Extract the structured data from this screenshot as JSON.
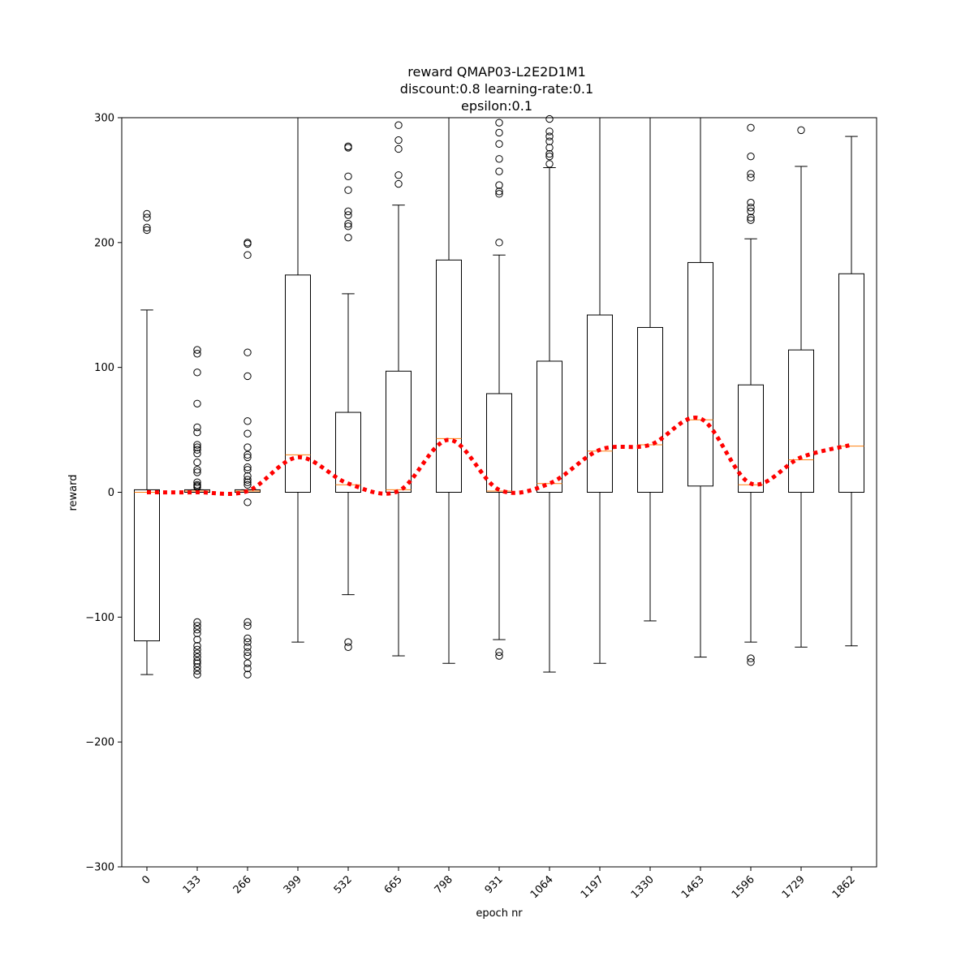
{
  "chart_data": {
    "type": "box",
    "title_lines": [
      "reward QMAP03-L2E2D1M1",
      "discount:0.8 learning-rate:0.1",
      "epsilon:0.1"
    ],
    "xlabel": "epoch nr",
    "ylabel": "reward",
    "ylim": [
      -300,
      300
    ],
    "y_ticks": [
      -300,
      -200,
      -100,
      0,
      100,
      200,
      300
    ],
    "y_tick_labels": [
      "−300",
      "−200",
      "−100",
      "0",
      "100",
      "200",
      "300"
    ],
    "categories": [
      "0",
      "133",
      "266",
      "399",
      "532",
      "665",
      "798",
      "931",
      "1064",
      "1197",
      "1330",
      "1463",
      "1596",
      "1729",
      "1862"
    ],
    "boxes": [
      {
        "q1": -119,
        "median": 0,
        "q3": 2,
        "whisker_low": -146,
        "whisker_high": 146,
        "outliers": [
          210,
          212,
          220,
          223
        ]
      },
      {
        "q1": 0,
        "median": 1,
        "q3": 2,
        "whisker_low": 0,
        "whisker_high": 2,
        "outliers": [
          114,
          111,
          96,
          71,
          52,
          48,
          38,
          36,
          34,
          31,
          24,
          18,
          16,
          8,
          6,
          5,
          4,
          -104,
          -107,
          -110,
          -113,
          -118,
          -123,
          -126,
          -129,
          -132,
          -135,
          -137,
          -140,
          -143,
          -146
        ]
      },
      {
        "q1": 0,
        "median": 1,
        "q3": 2,
        "whisker_low": 0,
        "whisker_high": 2,
        "outliers": [
          200,
          199,
          190,
          112,
          93,
          57,
          47,
          36,
          30,
          28,
          20,
          18,
          13,
          10,
          8,
          6,
          -8,
          -104,
          -107,
          -117,
          -120,
          -124,
          -128,
          -131,
          -137,
          -141,
          -146
        ]
      },
      {
        "q1": 0,
        "median": 30,
        "q3": 174,
        "whisker_low": -120,
        "whisker_high": 300,
        "outliers": []
      },
      {
        "q1": 0,
        "median": 6,
        "q3": 64,
        "whisker_low": -82,
        "whisker_high": 159,
        "outliers": [
          277,
          276,
          253,
          242,
          225,
          222,
          215,
          213,
          204,
          -120,
          -124
        ]
      },
      {
        "q1": 0,
        "median": 2,
        "q3": 97,
        "whisker_low": -131,
        "whisker_high": 230,
        "outliers": [
          294,
          282,
          275,
          254,
          247
        ]
      },
      {
        "q1": 0,
        "median": 43,
        "q3": 186,
        "whisker_low": -137,
        "whisker_high": 300,
        "outliers": []
      },
      {
        "q1": 0,
        "median": 1,
        "q3": 79,
        "whisker_low": -118,
        "whisker_high": 190,
        "outliers": [
          296,
          288,
          279,
          267,
          257,
          246,
          241,
          239,
          200,
          -128,
          -131
        ]
      },
      {
        "q1": 0,
        "median": 7,
        "q3": 105,
        "whisker_low": -144,
        "whisker_high": 260,
        "outliers": [
          299,
          289,
          285,
          281,
          276,
          271,
          269,
          263
        ]
      },
      {
        "q1": 0,
        "median": 33,
        "q3": 142,
        "whisker_low": -137,
        "whisker_high": 300,
        "outliers": []
      },
      {
        "q1": 0,
        "median": 38,
        "q3": 132,
        "whisker_low": -103,
        "whisker_high": 300,
        "outliers": []
      },
      {
        "q1": 5,
        "median": 58,
        "q3": 184,
        "whisker_low": -132,
        "whisker_high": 300,
        "outliers": []
      },
      {
        "q1": 0,
        "median": 6,
        "q3": 86,
        "whisker_low": -120,
        "whisker_high": 203,
        "outliers": [
          292,
          269,
          255,
          252,
          232,
          228,
          225,
          220,
          218,
          -133,
          -136
        ]
      },
      {
        "q1": 0,
        "median": 26,
        "q3": 114,
        "whisker_low": -124,
        "whisker_high": 261,
        "outliers": [
          290
        ]
      },
      {
        "q1": 0,
        "median": 37,
        "q3": 175,
        "whisker_low": -123,
        "whisker_high": 285,
        "outliers": []
      }
    ],
    "mean_line": {
      "values": [
        0,
        0,
        1,
        28,
        7,
        1,
        42,
        2,
        7,
        34,
        38,
        59,
        7,
        28,
        38
      ],
      "color": "#ff0000",
      "style": "dotted"
    },
    "colors": {
      "box": "#000000",
      "median": "#ff7f0e",
      "mean": "#ff0000",
      "outlier": "#000000"
    },
    "grid": false
  }
}
